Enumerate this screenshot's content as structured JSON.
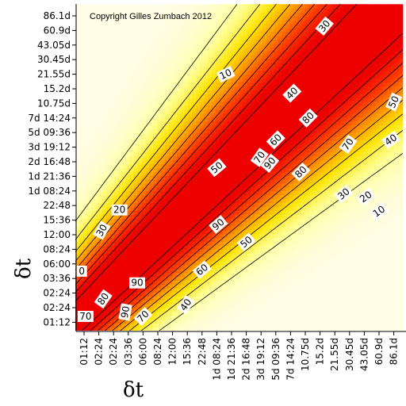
{
  "chart_data": {
    "type": "heatmap",
    "annotation": "Copyright Gilles Zumbach 2012",
    "xlabel": "δt",
    "ylabel": "δt",
    "x_ticks": [
      "01:12",
      "02:24",
      "02:24",
      "03:36",
      "06:00",
      "08:24",
      "12:00",
      "15:36",
      "22:48",
      "1d 08:24",
      "1d 21:36",
      "2d 16:48",
      "3d 19:12",
      "5d 09:36",
      "7d 14:24",
      "10.75d",
      "15.2d",
      "21.55d",
      "30.45d",
      "43.05d",
      "60.9d",
      "86.1d"
    ],
    "y_ticks": [
      "86.1d",
      "60.9d",
      "43.05d",
      "30.45d",
      "21.55d",
      "15.2d",
      "10.75d",
      "7d 14:24",
      "5d 09:36",
      "3d 19:12",
      "2d 16:48",
      "1d 21:36",
      "1d 08:24",
      "22:48",
      "15:36",
      "12:00",
      "08:24",
      "06:00",
      "03:36",
      "02:24",
      "02:24",
      "01:12"
    ],
    "contour_levels": [
      10,
      20,
      30,
      40,
      50,
      60,
      70,
      80,
      90
    ],
    "colormap": [
      "#fffde6",
      "#ffff99",
      "#ffe400",
      "#ff9900",
      "#ff3a00",
      "#ee0000"
    ],
    "contour_labels": [
      {
        "text": "30",
        "xi": 16.3,
        "yi": 0.7,
        "rot": -50
      },
      {
        "text": "10",
        "xi": 9.6,
        "yi": 4.0,
        "rot": -25
      },
      {
        "text": "40",
        "xi": 14.1,
        "yi": 5.3,
        "rot": -45
      },
      {
        "text": "50",
        "xi": 21.0,
        "yi": 5.9,
        "rot": -65
      },
      {
        "text": "80",
        "xi": 15.2,
        "yi": 7.0,
        "rot": -45
      },
      {
        "text": "60",
        "xi": 13.0,
        "yi": 8.5,
        "rot": -45
      },
      {
        "text": "70",
        "xi": 17.9,
        "yi": 8.8,
        "rot": -55
      },
      {
        "text": "40",
        "xi": 20.8,
        "yi": 8.5,
        "rot": -35
      },
      {
        "text": "70",
        "xi": 11.9,
        "yi": 9.7,
        "rot": -55
      },
      {
        "text": "90",
        "xi": 12.6,
        "yi": 10.1,
        "rot": -50
      },
      {
        "text": "50",
        "xi": 9.0,
        "yi": 10.4,
        "rot": -40
      },
      {
        "text": "80",
        "xi": 14.7,
        "yi": 10.7,
        "rot": -45
      },
      {
        "text": "30",
        "xi": 17.6,
        "yi": 12.2,
        "rot": -40
      },
      {
        "text": "20",
        "xi": 19.1,
        "yi": 12.4,
        "rot": -35
      },
      {
        "text": "10",
        "xi": 20.0,
        "yi": 13.4,
        "rot": -35
      },
      {
        "text": "20",
        "xi": 2.4,
        "yi": 13.3,
        "rot": 0
      },
      {
        "text": "30",
        "xi": 1.2,
        "yi": 14.7,
        "rot": -60
      },
      {
        "text": "90",
        "xi": 9.1,
        "yi": 14.3,
        "rot": -40
      },
      {
        "text": "50",
        "xi": 11.0,
        "yi": 15.5,
        "rot": -40
      },
      {
        "text": "60",
        "xi": 8.0,
        "yi": 17.4,
        "rot": -40
      },
      {
        "text": "0",
        "xi": -0.15,
        "yi": 17.5,
        "rot": 0
      },
      {
        "text": "90",
        "xi": 3.6,
        "yi": 18.3,
        "rot": 0
      },
      {
        "text": "80",
        "xi": 1.3,
        "yi": 19.4,
        "rot": -55
      },
      {
        "text": "40",
        "xi": 6.9,
        "yi": 19.8,
        "rot": -55
      },
      {
        "text": "90",
        "xi": 2.8,
        "yi": 20.3,
        "rot": -80
      },
      {
        "text": "70",
        "xi": 0.1,
        "yi": 20.6,
        "rot": 0
      },
      {
        "text": "70",
        "xi": 4.0,
        "yi": 20.6,
        "rot": -45
      }
    ]
  }
}
